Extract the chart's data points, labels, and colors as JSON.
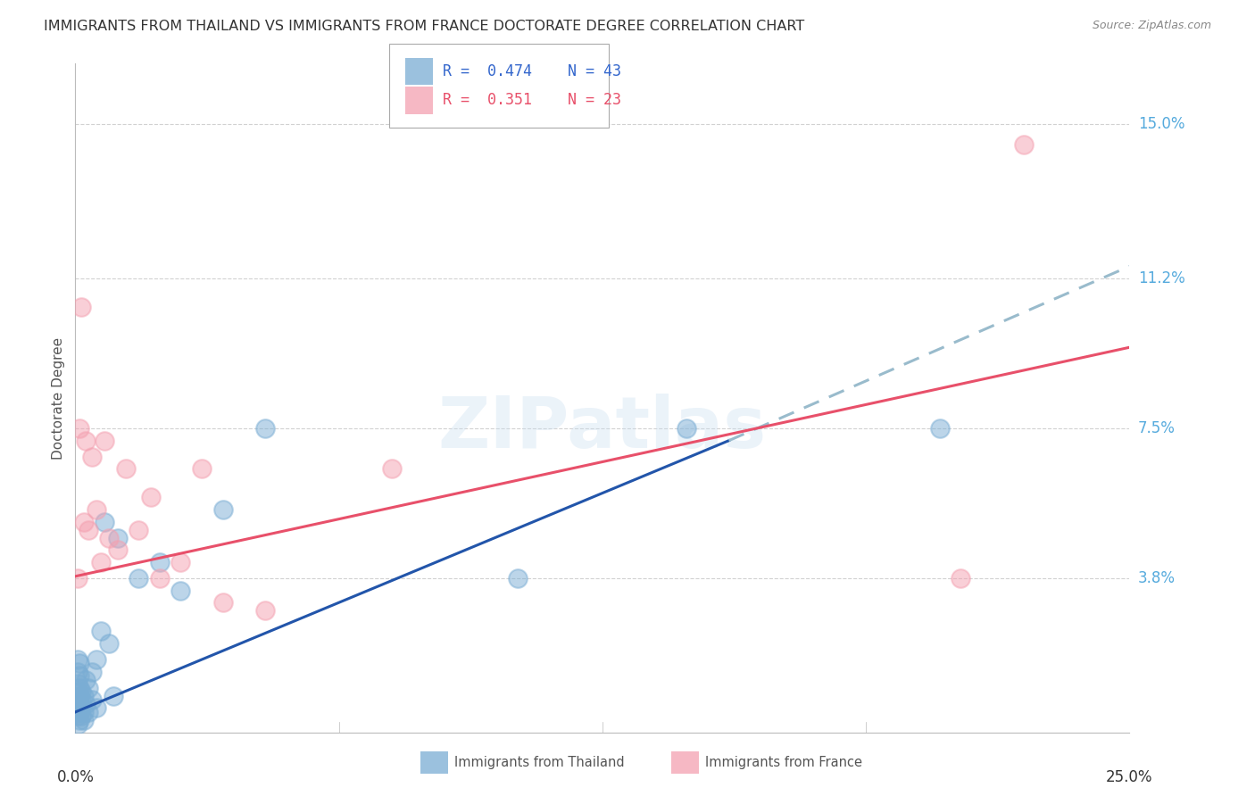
{
  "title": "IMMIGRANTS FROM THAILAND VS IMMIGRANTS FROM FRANCE DOCTORATE DEGREE CORRELATION CHART",
  "source": "Source: ZipAtlas.com",
  "ylabel": "Doctorate Degree",
  "ytick_labels": [
    "3.8%",
    "7.5%",
    "11.2%",
    "15.0%"
  ],
  "ytick_values": [
    3.8,
    7.5,
    11.2,
    15.0
  ],
  "xlim": [
    0.0,
    25.0
  ],
  "ylim": [
    0.0,
    16.5
  ],
  "color_thailand": "#7aadd4",
  "color_france": "#f4a0b0",
  "color_trendline_thailand": "#2255aa",
  "color_trendline_france": "#e8506a",
  "color_dashed_extension": "#99bbcc",
  "background_color": "#ffffff",
  "grid_color": "#cccccc",
  "watermark": "ZIPatlas",
  "thailand_x": [
    0.05,
    0.05,
    0.05,
    0.05,
    0.05,
    0.05,
    0.05,
    0.05,
    0.1,
    0.1,
    0.1,
    0.1,
    0.1,
    0.1,
    0.1,
    0.15,
    0.15,
    0.15,
    0.15,
    0.2,
    0.2,
    0.2,
    0.25,
    0.25,
    0.3,
    0.3,
    0.4,
    0.4,
    0.5,
    0.5,
    0.6,
    0.7,
    0.8,
    0.9,
    1.0,
    1.5,
    2.0,
    2.5,
    3.5,
    4.5,
    10.5,
    14.5,
    20.5
  ],
  "thailand_y": [
    0.2,
    0.4,
    0.6,
    0.8,
    1.0,
    1.2,
    1.5,
    1.8,
    0.3,
    0.5,
    0.7,
    0.9,
    1.1,
    1.4,
    1.7,
    0.4,
    0.6,
    0.8,
    1.0,
    0.3,
    0.5,
    0.9,
    0.7,
    1.3,
    0.5,
    1.1,
    0.8,
    1.5,
    0.6,
    1.8,
    2.5,
    5.2,
    2.2,
    0.9,
    4.8,
    3.8,
    4.2,
    3.5,
    5.5,
    7.5,
    3.8,
    7.5,
    7.5
  ],
  "france_x": [
    0.05,
    0.1,
    0.15,
    0.2,
    0.25,
    0.3,
    0.4,
    0.5,
    0.6,
    0.7,
    0.8,
    1.0,
    1.2,
    1.5,
    1.8,
    2.0,
    2.5,
    3.0,
    3.5,
    4.5,
    7.5,
    21.0,
    22.5
  ],
  "france_y": [
    3.8,
    7.5,
    10.5,
    5.2,
    7.2,
    5.0,
    6.8,
    5.5,
    4.2,
    7.2,
    4.8,
    4.5,
    6.5,
    5.0,
    5.8,
    3.8,
    4.2,
    6.5,
    3.2,
    3.0,
    6.5,
    3.8,
    14.5
  ],
  "trendline_thailand_x0": 0.0,
  "trendline_thailand_y0": 0.5,
  "trendline_thailand_x1": 15.5,
  "trendline_thailand_y1": 7.2,
  "trendline_dash_x0": 15.5,
  "trendline_dash_y0": 7.2,
  "trendline_dash_x1": 25.0,
  "trendline_dash_y1": 11.5,
  "trendline_france_x0": 0.0,
  "trendline_france_y0": 3.85,
  "trendline_france_x1": 25.0,
  "trendline_france_y1": 9.5
}
